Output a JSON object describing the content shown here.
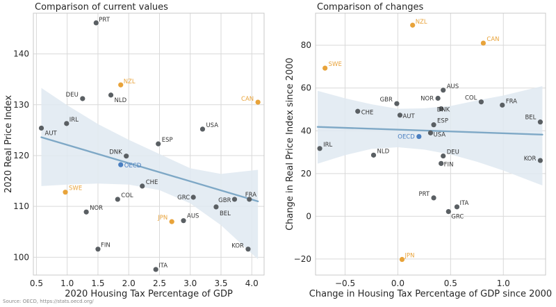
{
  "source": "Source: OECD, https://stats.oecd.org/",
  "colors": {
    "default": "#5a5f63",
    "highlight": "#e8a33a",
    "oecd": "#4a7fc1",
    "trend": "#7ea8c6",
    "band": "#dfe9f1",
    "grid": "#d9d9d9",
    "frame": "#c8c8c8"
  },
  "chart_data": [
    {
      "type": "scatter",
      "title": "Comparison of current values",
      "xlabel": "2020 Housing Tax Percentage of GDP",
      "ylabel": "2020 Real Price Index",
      "xlim": [
        0.45,
        4.2
      ],
      "ylim": [
        96.5,
        148
      ],
      "xticks": [
        0.5,
        1.0,
        1.5,
        2.0,
        2.5,
        3.0,
        3.5,
        4.0
      ],
      "xtick_labels": [
        "0.5",
        "1.0",
        "1.5",
        "2.0",
        "2.5",
        "3.0",
        "3.5",
        "4.0"
      ],
      "yticks": [
        100,
        110,
        120,
        130,
        140
      ],
      "ytick_labels": [
        "100",
        "110",
        "120",
        "130",
        "140"
      ],
      "trend": {
        "x": [
          0.58,
          4.1
        ],
        "y": [
          123.6,
          111.0
        ]
      },
      "band": {
        "x": [
          0.58,
          1.0,
          1.5,
          2.0,
          2.5,
          3.0,
          3.5,
          4.1
        ],
        "lower": [
          114.0,
          114.3,
          114.5,
          114.3,
          113.2,
          110.6,
          106.3,
          99.6
        ],
        "upper": [
          133.3,
          129.9,
          126.2,
          123.1,
          120.3,
          117.5,
          116.4,
          117.2
        ]
      },
      "points": [
        {
          "label": "PRT",
          "x": 1.47,
          "y": 146.1,
          "group": "default"
        },
        {
          "label": "NZL",
          "x": 1.87,
          "y": 133.9,
          "group": "highlight"
        },
        {
          "label": "DEU",
          "x": 1.25,
          "y": 131.2,
          "group": "default"
        },
        {
          "label": "NLD",
          "x": 1.71,
          "y": 131.9,
          "group": "default"
        },
        {
          "label": "CAN",
          "x": 4.1,
          "y": 130.5,
          "group": "highlight"
        },
        {
          "label": "IRL",
          "x": 0.99,
          "y": 126.3,
          "group": "default"
        },
        {
          "label": "AUT",
          "x": 0.58,
          "y": 125.4,
          "group": "default"
        },
        {
          "label": "USA",
          "x": 3.2,
          "y": 125.2,
          "group": "default"
        },
        {
          "label": "ESP",
          "x": 2.48,
          "y": 122.3,
          "group": "default"
        },
        {
          "label": "DNK",
          "x": 1.96,
          "y": 119.9,
          "group": "default"
        },
        {
          "label": "OECD",
          "x": 1.87,
          "y": 118.2,
          "group": "oecd"
        },
        {
          "label": "CHE",
          "x": 2.22,
          "y": 114.0,
          "group": "default"
        },
        {
          "label": "SWE",
          "x": 0.97,
          "y": 112.8,
          "group": "highlight"
        },
        {
          "label": "COL",
          "x": 1.82,
          "y": 111.4,
          "group": "default"
        },
        {
          "label": "GRC",
          "x": 3.05,
          "y": 111.8,
          "group": "default"
        },
        {
          "label": "GBR",
          "x": 3.72,
          "y": 111.4,
          "group": "default"
        },
        {
          "label": "FRA",
          "x": 3.96,
          "y": 111.4,
          "group": "default"
        },
        {
          "label": "BEL",
          "x": 3.42,
          "y": 109.9,
          "group": "default"
        },
        {
          "label": "NOR",
          "x": 1.31,
          "y": 108.9,
          "group": "default"
        },
        {
          "label": "JPN",
          "x": 2.7,
          "y": 107.0,
          "group": "highlight"
        },
        {
          "label": "AUS",
          "x": 2.89,
          "y": 107.2,
          "group": "default"
        },
        {
          "label": "FIN",
          "x": 1.5,
          "y": 101.6,
          "group": "default"
        },
        {
          "label": "KOR",
          "x": 3.94,
          "y": 101.6,
          "group": "default"
        },
        {
          "label": "ITA",
          "x": 2.44,
          "y": 97.6,
          "group": "default"
        }
      ]
    },
    {
      "type": "scatter",
      "title": "Comparison of changes",
      "xlabel": "Change in Housing Tax Percentage of GDP since 2000",
      "ylabel": "Change in Real Price Index since 2000",
      "xlim": [
        -0.78,
        1.4
      ],
      "ylim": [
        -27.5,
        95
      ],
      "xticks": [
        -0.5,
        0.0,
        0.5,
        1.0
      ],
      "xtick_labels": [
        "−0.5",
        "0.0",
        "0.5",
        "1.0"
      ],
      "yticks": [
        -20,
        0,
        20,
        40,
        60,
        80
      ],
      "ytick_labels": [
        "−20",
        "0",
        "20",
        "40",
        "60",
        "80"
      ],
      "trend": {
        "x": [
          -0.76,
          1.37
        ],
        "y": [
          41.8,
          38.2
        ]
      },
      "band": {
        "x": [
          -0.76,
          -0.5,
          -0.25,
          0.0,
          0.25,
          0.5,
          0.75,
          1.0,
          1.37
        ],
        "lower": [
          24.6,
          28.6,
          31.5,
          32.3,
          31.2,
          28.9,
          25.5,
          21.4,
          14.4
        ],
        "upper": [
          58.7,
          55.2,
          52.4,
          50.3,
          50.5,
          51.6,
          54.2,
          56.5,
          60.9
        ]
      },
      "points": [
        {
          "label": "NZL",
          "x": 0.14,
          "y": 89.4,
          "group": "highlight"
        },
        {
          "label": "CAN",
          "x": 0.81,
          "y": 81.0,
          "group": "highlight"
        },
        {
          "label": "SWE",
          "x": -0.69,
          "y": 69.3,
          "group": "highlight"
        },
        {
          "label": "AUS",
          "x": 0.43,
          "y": 59.0,
          "group": "default"
        },
        {
          "label": "NOR",
          "x": 0.38,
          "y": 55.2,
          "group": "default"
        },
        {
          "label": "GBR",
          "x": -0.01,
          "y": 52.7,
          "group": "default"
        },
        {
          "label": "COL",
          "x": 0.79,
          "y": 53.5,
          "group": "default"
        },
        {
          "label": "FRA",
          "x": 0.99,
          "y": 52.0,
          "group": "default"
        },
        {
          "label": "DNK",
          "x": 0.41,
          "y": 50.3,
          "group": "default"
        },
        {
          "label": "CHE",
          "x": -0.38,
          "y": 49.1,
          "group": "default"
        },
        {
          "label": "AUT",
          "x": 0.02,
          "y": 47.3,
          "group": "default"
        },
        {
          "label": "ESP",
          "x": 0.34,
          "y": 42.8,
          "group": "default"
        },
        {
          "label": "BEL",
          "x": 1.35,
          "y": 44.1,
          "group": "default"
        },
        {
          "label": "OECD",
          "x": 0.2,
          "y": 37.3,
          "group": "oecd"
        },
        {
          "label": "USA",
          "x": 0.31,
          "y": 39.0,
          "group": "default"
        },
        {
          "label": "IRL",
          "x": -0.74,
          "y": 31.7,
          "group": "default"
        },
        {
          "label": "NLD",
          "x": -0.23,
          "y": 28.6,
          "group": "default"
        },
        {
          "label": "DEU",
          "x": 0.43,
          "y": 28.2,
          "group": "default"
        },
        {
          "label": "FIN",
          "x": 0.41,
          "y": 24.7,
          "group": "default"
        },
        {
          "label": "KOR",
          "x": 1.35,
          "y": 26.1,
          "group": "default"
        },
        {
          "label": "PRT",
          "x": 0.34,
          "y": 8.6,
          "group": "default"
        },
        {
          "label": "ITA",
          "x": 0.56,
          "y": 4.4,
          "group": "default"
        },
        {
          "label": "GRC",
          "x": 0.48,
          "y": 2.2,
          "group": "default"
        },
        {
          "label": "JPN",
          "x": 0.04,
          "y": -20.2,
          "group": "highlight"
        }
      ]
    }
  ]
}
